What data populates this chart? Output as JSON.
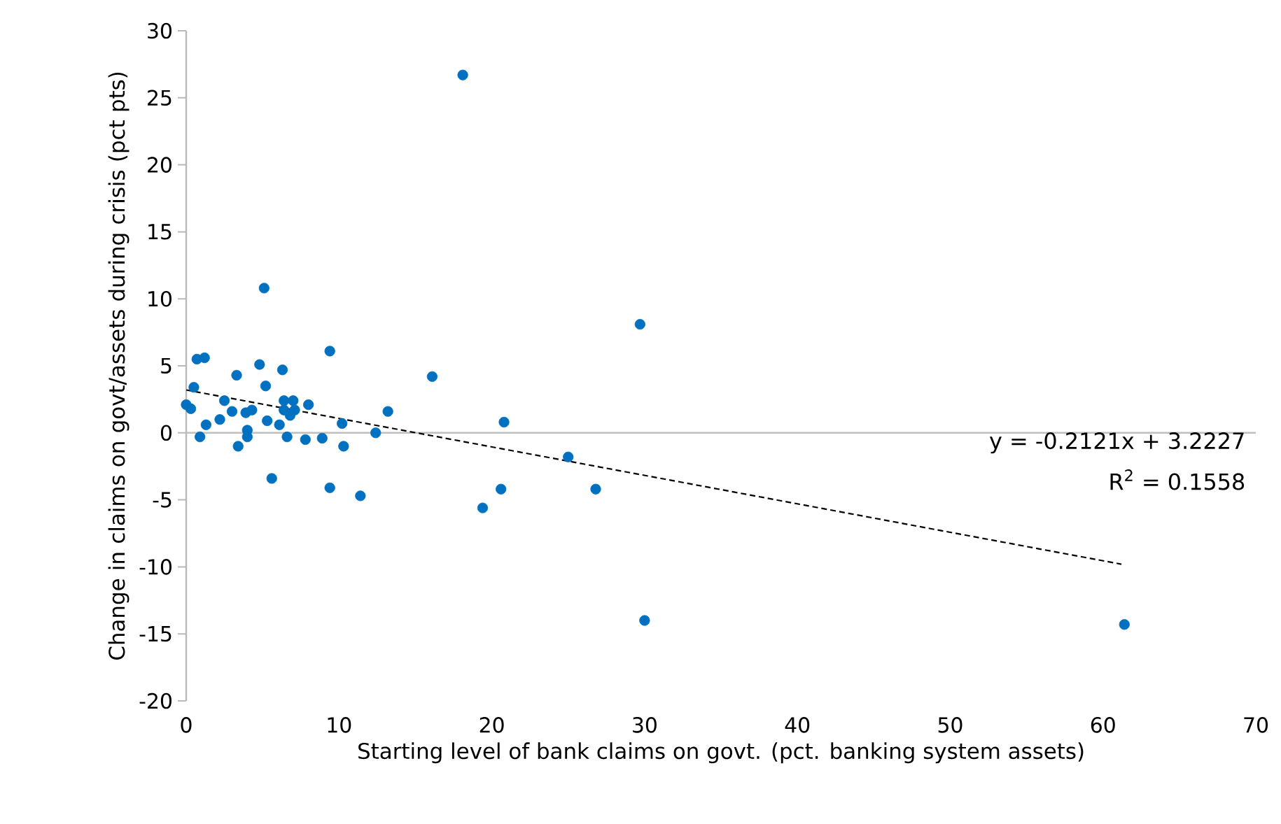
{
  "chart_data": {
    "type": "scatter",
    "xlabel": "Starting level of bank claims on govt. (pct. banking system assets)",
    "ylabel": "Change in claims on govt/assets during crisis (pct pts)",
    "xlim": [
      0,
      70
    ],
    "xticks": [
      0,
      10,
      20,
      30,
      40,
      50,
      60,
      70
    ],
    "ylim": [
      -20,
      30
    ],
    "yticks": [
      -20,
      -15,
      -10,
      -5,
      0,
      5,
      10,
      15,
      20,
      25,
      30
    ],
    "grid": false,
    "ref_lines": [
      {
        "axis": "y",
        "value": 0,
        "color": "#bfbfbf"
      }
    ],
    "annotations": [
      "y = -0.2121x + 3.2227",
      "R$^{2}$ = 0.1558"
    ],
    "series": [
      {
        "color": "#0070c0",
        "marker": "circle",
        "x": [
          0,
          0.3,
          0.5,
          0.7,
          1.2,
          0.9,
          1.3,
          2.5,
          2.2,
          3.0,
          3.3,
          3.4,
          3.9,
          4.3,
          4.0,
          4.0,
          4.8,
          5.1,
          5.2,
          5.3,
          5.6,
          6.1,
          6.3,
          6.4,
          6.4,
          6.6,
          6.8,
          7.0,
          7.1,
          7.8,
          8.0,
          8.9,
          9.4,
          9.4,
          10.2,
          10.3,
          11.4,
          12.4,
          13.2,
          16.1,
          18.1,
          19.4,
          20.6,
          20.8,
          25.0,
          26.8,
          29.7,
          30.0,
          61.4
        ],
        "values": [
          2.1,
          1.8,
          3.4,
          5.5,
          5.6,
          -0.3,
          0.6,
          2.4,
          1.0,
          1.6,
          4.3,
          -1.0,
          1.5,
          1.7,
          0.2,
          -0.3,
          5.1,
          10.8,
          3.5,
          0.9,
          -3.4,
          0.6,
          4.7,
          2.4,
          1.7,
          -0.3,
          1.3,
          2.4,
          1.7,
          -0.5,
          2.1,
          -0.4,
          6.1,
          -4.1,
          0.7,
          -1.0,
          -4.7,
          0.0,
          1.6,
          4.2,
          26.7,
          -5.6,
          -4.2,
          0.8,
          -1.8,
          -4.2,
          8.1,
          -14.0,
          -14.3
        ]
      },
      {
        "type": "line",
        "color": "#000000",
        "line_style": "dashed",
        "marker": "none",
        "x": [
          0,
          61.2
        ],
        "values": [
          3.2,
          -9.8
        ]
      }
    ]
  }
}
